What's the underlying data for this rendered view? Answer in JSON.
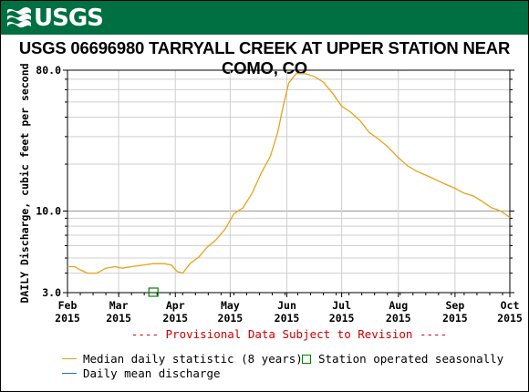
{
  "header": {
    "logo_text": "USGS",
    "background": "#006f41"
  },
  "chart_data": {
    "type": "line",
    "title": "USGS 06696980 TARRYALL CREEK AT UPPER STATION NEAR COMO, CO",
    "ylabel": "DAILY Discharge, cubic feet per second",
    "yscale": "log",
    "ylim": [
      3.0,
      80.0
    ],
    "ytick_labels": [
      "3.0",
      "10.0",
      "80.0"
    ],
    "xlim": [
      "2015-02-01",
      "2015-10-01"
    ],
    "xtick_labels": [
      {
        "month": "Feb",
        "year": "2015",
        "date": "2015-02-01"
      },
      {
        "month": "Mar",
        "year": "2015",
        "date": "2015-03-01"
      },
      {
        "month": "Apr",
        "year": "2015",
        "date": "2015-04-01"
      },
      {
        "month": "May",
        "year": "2015",
        "date": "2015-05-01"
      },
      {
        "month": "Jun",
        "year": "2015",
        "date": "2015-06-01"
      },
      {
        "month": "Jul",
        "year": "2015",
        "date": "2015-07-01"
      },
      {
        "month": "Aug",
        "year": "2015",
        "date": "2015-08-01"
      },
      {
        "month": "Sep",
        "year": "2015",
        "date": "2015-09-01"
      },
      {
        "month": "Oct",
        "year": "2015",
        "date": "2015-10-01"
      }
    ],
    "grid": true,
    "annotation": "---- Provisional Data Subject to Revision ----",
    "annotation_color": "#cc0000",
    "series": [
      {
        "name": "Median daily statistic (8 years)",
        "color": "#e8a317",
        "points": [
          [
            "2015-02-01",
            4.4
          ],
          [
            "2015-02-05",
            4.4
          ],
          [
            "2015-02-08",
            4.2
          ],
          [
            "2015-02-12",
            4.0
          ],
          [
            "2015-02-17",
            4.0
          ],
          [
            "2015-02-22",
            4.3
          ],
          [
            "2015-02-27",
            4.4
          ],
          [
            "2015-03-03",
            4.3
          ],
          [
            "2015-03-08",
            4.4
          ],
          [
            "2015-03-14",
            4.5
          ],
          [
            "2015-03-20",
            4.6
          ],
          [
            "2015-03-26",
            4.6
          ],
          [
            "2015-03-30",
            4.5
          ],
          [
            "2015-04-02",
            4.1
          ],
          [
            "2015-04-05",
            4.0
          ],
          [
            "2015-04-09",
            4.6
          ],
          [
            "2015-04-14",
            5.1
          ],
          [
            "2015-04-18",
            5.8
          ],
          [
            "2015-04-23",
            6.5
          ],
          [
            "2015-04-28",
            7.6
          ],
          [
            "2015-05-03",
            9.6
          ],
          [
            "2015-05-08",
            10.5
          ],
          [
            "2015-05-13",
            13.0
          ],
          [
            "2015-05-18",
            17.5
          ],
          [
            "2015-05-23",
            22.5
          ],
          [
            "2015-05-27",
            32.0
          ],
          [
            "2015-05-30",
            47.0
          ],
          [
            "2015-06-02",
            66.0
          ],
          [
            "2015-06-06",
            76.0
          ],
          [
            "2015-06-11",
            76.0
          ],
          [
            "2015-06-16",
            73.0
          ],
          [
            "2015-06-21",
            67.0
          ],
          [
            "2015-06-26",
            57.0
          ],
          [
            "2015-07-01",
            47.0
          ],
          [
            "2015-07-06",
            43.0
          ],
          [
            "2015-07-11",
            38.0
          ],
          [
            "2015-07-16",
            32.0
          ],
          [
            "2015-07-21",
            29.0
          ],
          [
            "2015-07-26",
            26.0
          ],
          [
            "2015-08-01",
            22.0
          ],
          [
            "2015-08-06",
            19.5
          ],
          [
            "2015-08-11",
            18.0
          ],
          [
            "2015-08-16",
            17.0
          ],
          [
            "2015-08-21",
            16.0
          ],
          [
            "2015-08-26",
            15.0
          ],
          [
            "2015-09-01",
            14.0
          ],
          [
            "2015-09-06",
            13.0
          ],
          [
            "2015-09-11",
            12.5
          ],
          [
            "2015-09-16",
            11.5
          ],
          [
            "2015-09-21",
            10.5
          ],
          [
            "2015-09-26",
            10.0
          ],
          [
            "2015-10-01",
            9.1
          ]
        ]
      },
      {
        "name": "Daily mean discharge",
        "color": "#1f77b4",
        "points": []
      }
    ],
    "markers": [
      {
        "name": "Station operated seasonally",
        "color": "#008000",
        "date": "2015-03-20",
        "value": 3.0
      }
    ]
  }
}
